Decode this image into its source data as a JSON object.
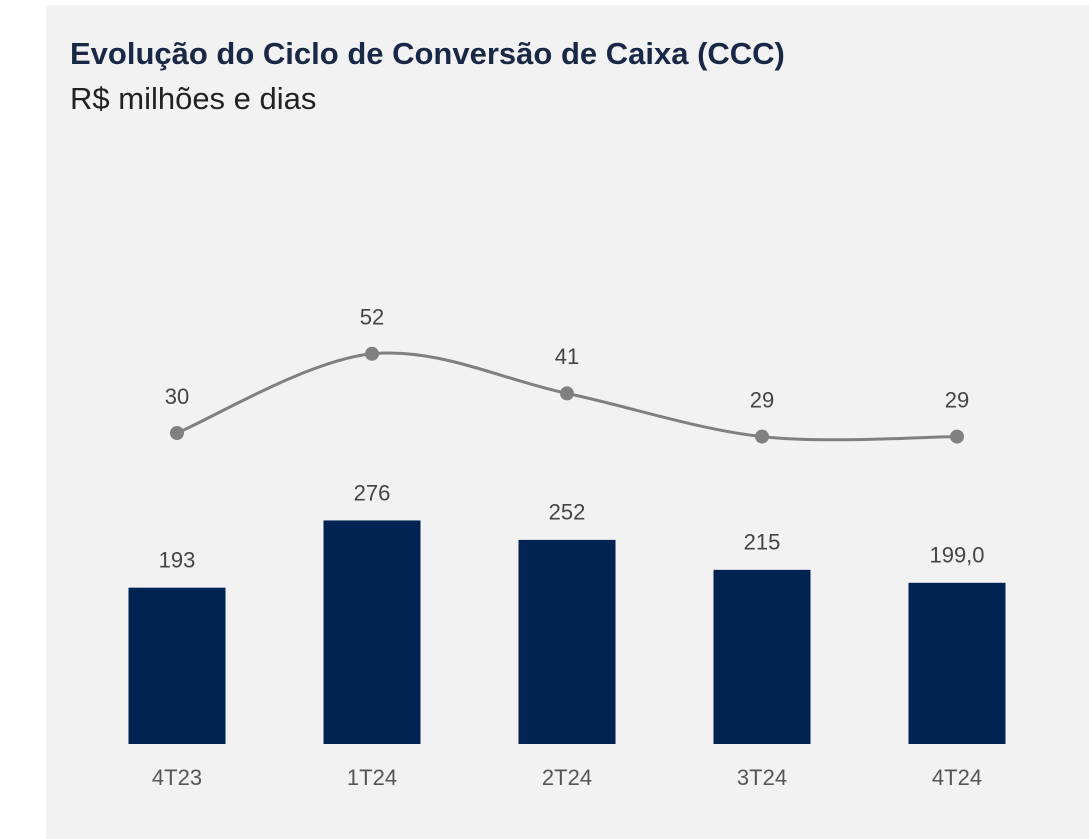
{
  "chart_data": {
    "type": "bar",
    "title": "Evolução do Ciclo de Conversão de Caixa (CCC)",
    "subtitle": "R$ milhões e dias",
    "categories": [
      "4T23",
      "1T24",
      "2T24",
      "3T24",
      "4T24"
    ],
    "series": [
      {
        "type": "bar",
        "color": "#002352",
        "values": [
          193,
          276,
          252,
          215,
          199
        ],
        "value_labels": [
          "193",
          "276",
          "252",
          "215",
          "199,0"
        ]
      },
      {
        "type": "line",
        "color": "#808080",
        "values": [
          30,
          52,
          41,
          29,
          29
        ]
      }
    ]
  }
}
